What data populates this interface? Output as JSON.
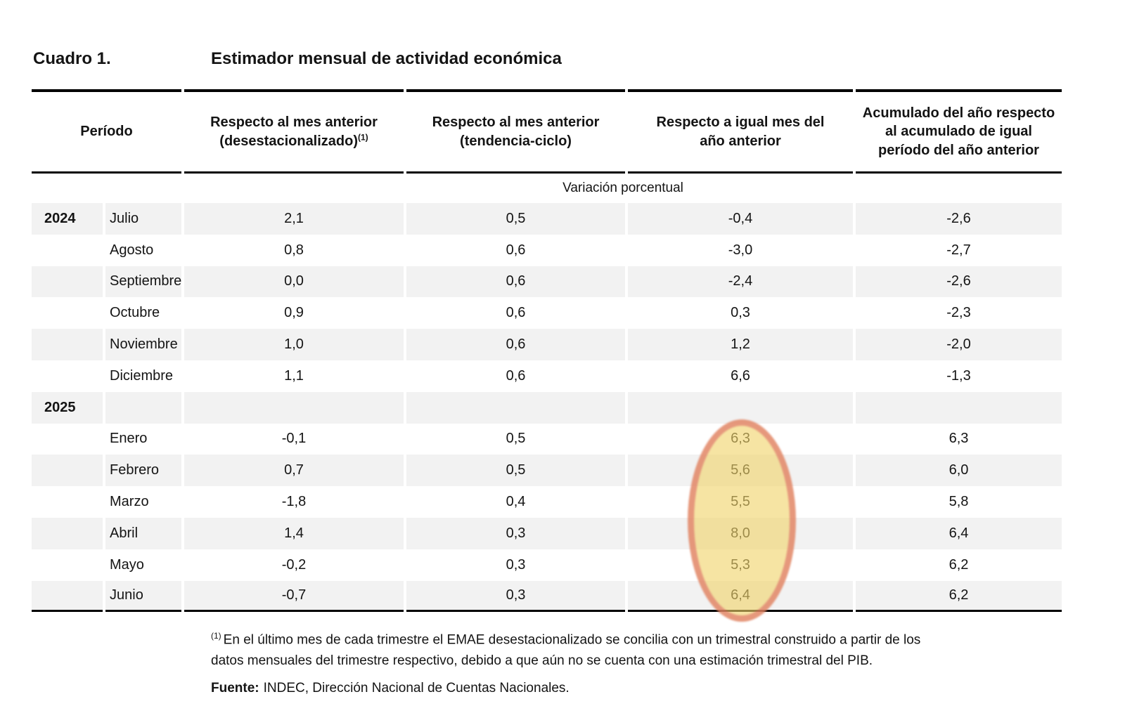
{
  "title": {
    "label": "Cuadro 1.",
    "text": "Estimador mensual de actividad económica"
  },
  "table": {
    "columns": {
      "periodo": {
        "label": "Período"
      },
      "mom_sa": {
        "line1": "Respecto al mes anterior",
        "line2": "(desestacionalizado)",
        "sup": "(1)"
      },
      "mom_tc": {
        "line1": "Respecto al mes anterior",
        "line2": "(tendencia-ciclo)"
      },
      "yoy": {
        "line1": "Respecto a igual mes del",
        "line2": "año anterior"
      },
      "ytd": {
        "line1": "Acumulado del año respecto",
        "line2": "al acumulado de igual",
        "line3": "período del año anterior"
      }
    },
    "subheader": "Variación porcentual",
    "rows": [
      {
        "year": "2024",
        "month": "Julio",
        "mom_sa": "2,1",
        "mom_tc": "0,5",
        "yoy": "-0,4",
        "ytd": "-2,6"
      },
      {
        "year": "",
        "month": "Agosto",
        "mom_sa": "0,8",
        "mom_tc": "0,6",
        "yoy": "-3,0",
        "ytd": "-2,7"
      },
      {
        "year": "",
        "month": "Septiembre",
        "mom_sa": "0,0",
        "mom_tc": "0,6",
        "yoy": "-2,4",
        "ytd": "-2,6"
      },
      {
        "year": "",
        "month": "Octubre",
        "mom_sa": "0,9",
        "mom_tc": "0,6",
        "yoy": "0,3",
        "ytd": "-2,3"
      },
      {
        "year": "",
        "month": "Noviembre",
        "mom_sa": "1,0",
        "mom_tc": "0,6",
        "yoy": "1,2",
        "ytd": "-2,0"
      },
      {
        "year": "",
        "month": "Diciembre",
        "mom_sa": "1,1",
        "mom_tc": "0,6",
        "yoy": "6,6",
        "ytd": "-1,3"
      },
      {
        "year": "2025",
        "month": "",
        "mom_sa": "",
        "mom_tc": "",
        "yoy": "",
        "ytd": ""
      },
      {
        "year": "",
        "month": "Enero",
        "mom_sa": "-0,1",
        "mom_tc": "0,5",
        "yoy": "6,3",
        "ytd": "6,3"
      },
      {
        "year": "",
        "month": "Febrero",
        "mom_sa": "0,7",
        "mom_tc": "0,5",
        "yoy": "5,6",
        "ytd": "6,0"
      },
      {
        "year": "",
        "month": "Marzo",
        "mom_sa": "-1,8",
        "mom_tc": "0,4",
        "yoy": "5,5",
        "ytd": "5,8"
      },
      {
        "year": "",
        "month": "Abril",
        "mom_sa": "1,4",
        "mom_tc": "0,3",
        "yoy": "8,0",
        "ytd": "6,4"
      },
      {
        "year": "",
        "month": "Mayo",
        "mom_sa": "-0,2",
        "mom_tc": "0,3",
        "yoy": "5,3",
        "ytd": "6,2"
      },
      {
        "year": "",
        "month": "Junio",
        "mom_sa": "-0,7",
        "mom_tc": "0,3",
        "yoy": "6,4",
        "ytd": "6,2"
      }
    ],
    "stripe_color": "#f2f2f2",
    "rule_color": "#000000"
  },
  "highlight": {
    "shape": "ellipse",
    "target": "columna 'Respecto a igual mes del año anterior', filas Enero–Junio 2025",
    "fill_color": "#F0D36A",
    "ring_color": "#D8595C"
  },
  "footnote": {
    "marker": "(1)",
    "line1": "En el último mes de cada trimestre el EMAE desestacionalizado se concilia con un trimestral construido a partir de los",
    "line2": "datos mensuales del trimestre respectivo, debido a que aún no se cuenta con una estimación trimestral del PIB."
  },
  "source": {
    "label": "Fuente:",
    "text": "INDEC, Dirección Nacional de Cuentas Nacionales."
  }
}
